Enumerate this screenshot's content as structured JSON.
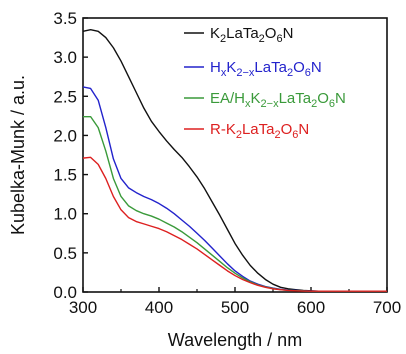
{
  "chart_data": {
    "type": "line",
    "xlabel": "Wavelength / nm",
    "ylabel": "Kubelka-Munk / a.u.",
    "xlim": [
      300,
      700
    ],
    "ylim": [
      0,
      3.5
    ],
    "xticks": [
      300,
      400,
      500,
      600,
      700
    ],
    "yticks": [
      0.0,
      0.5,
      1.0,
      1.5,
      2.0,
      2.5,
      3.0,
      3.5
    ],
    "ytick_labels": [
      "0.0",
      "0.5",
      "1.0",
      "1.5",
      "2.0",
      "2.5",
      "3.0",
      "3.5"
    ],
    "grid": false,
    "legend_position": "top-right",
    "series": [
      {
        "name": "K2LaTa2O6N",
        "legend": {
          "a": "K",
          "a_sub": "2",
          "b": "LaTa",
          "b_sub": "2",
          "c": "O",
          "c_sub": "6",
          "d": "N"
        },
        "color": "#111111",
        "x": [
          300,
          310,
          320,
          330,
          340,
          350,
          360,
          370,
          380,
          390,
          400,
          410,
          420,
          430,
          440,
          450,
          460,
          470,
          480,
          490,
          500,
          510,
          520,
          530,
          540,
          550,
          560,
          570,
          580,
          590,
          600,
          610,
          620,
          640,
          660,
          680,
          700
        ],
        "y": [
          3.33,
          3.35,
          3.33,
          3.25,
          3.12,
          2.95,
          2.75,
          2.55,
          2.35,
          2.18,
          2.05,
          1.93,
          1.82,
          1.72,
          1.6,
          1.47,
          1.32,
          1.15,
          0.98,
          0.8,
          0.62,
          0.47,
          0.34,
          0.24,
          0.16,
          0.1,
          0.06,
          0.04,
          0.03,
          0.02,
          0.015,
          0.01,
          0.01,
          0.01,
          0.01,
          0.01,
          0.01
        ]
      },
      {
        "name": "HxK2-xLaTa2O6N",
        "legend": {
          "a": "H",
          "a_sub": "x",
          "b": "K",
          "b_sub": "2−x",
          "c": "LaTa",
          "c_sub": "2",
          "d": "O",
          "d_sub": "6",
          "e": "N"
        },
        "color": "#2323cc",
        "x": [
          300,
          310,
          320,
          330,
          340,
          350,
          360,
          370,
          380,
          390,
          400,
          410,
          420,
          430,
          440,
          450,
          460,
          470,
          480,
          490,
          500,
          510,
          520,
          530,
          540,
          550,
          560,
          570,
          580,
          590,
          600,
          610,
          620,
          640,
          660,
          680,
          700
        ],
        "y": [
          2.62,
          2.6,
          2.45,
          2.1,
          1.7,
          1.45,
          1.33,
          1.27,
          1.22,
          1.18,
          1.13,
          1.07,
          1.0,
          0.92,
          0.84,
          0.75,
          0.66,
          0.56,
          0.46,
          0.36,
          0.27,
          0.2,
          0.14,
          0.1,
          0.07,
          0.05,
          0.035,
          0.025,
          0.02,
          0.015,
          0.012,
          0.01,
          0.01,
          0.01,
          0.01,
          0.01,
          0.01
        ]
      },
      {
        "name": "EA/HxK2-xLaTa2O6N",
        "legend": {
          "a": "EA/H",
          "a_sub": "x",
          "b": "K",
          "b_sub": "2−x",
          "c": "LaTa",
          "c_sub": "2",
          "d": "O",
          "d_sub": "6",
          "e": "N"
        },
        "color": "#3a9a3a",
        "x": [
          300,
          310,
          320,
          330,
          340,
          350,
          360,
          370,
          380,
          390,
          400,
          410,
          420,
          430,
          440,
          450,
          460,
          470,
          480,
          490,
          500,
          510,
          520,
          530,
          540,
          550,
          560,
          570,
          580,
          590,
          600,
          610,
          620,
          640,
          660,
          680,
          700
        ],
        "y": [
          2.24,
          2.24,
          2.1,
          1.8,
          1.45,
          1.22,
          1.1,
          1.04,
          1.0,
          0.97,
          0.93,
          0.88,
          0.83,
          0.77,
          0.7,
          0.63,
          0.55,
          0.47,
          0.39,
          0.31,
          0.24,
          0.18,
          0.13,
          0.09,
          0.065,
          0.045,
          0.03,
          0.022,
          0.017,
          0.013,
          0.01,
          0.01,
          0.01,
          0.01,
          0.01,
          0.01,
          0.01
        ]
      },
      {
        "name": "R-K2LaTa2O6N",
        "legend": {
          "a": "R-K",
          "a_sub": "2",
          "b": "LaTa",
          "b_sub": "2",
          "c": "O",
          "c_sub": "6",
          "d": "N"
        },
        "color": "#dd2020",
        "x": [
          300,
          310,
          320,
          330,
          340,
          350,
          360,
          370,
          380,
          390,
          400,
          410,
          420,
          430,
          440,
          450,
          460,
          470,
          480,
          490,
          500,
          510,
          520,
          530,
          540,
          550,
          560,
          570,
          580,
          590,
          600,
          610,
          620,
          640,
          660,
          680,
          700
        ],
        "y": [
          1.71,
          1.72,
          1.63,
          1.45,
          1.22,
          1.05,
          0.95,
          0.9,
          0.87,
          0.84,
          0.81,
          0.77,
          0.72,
          0.67,
          0.61,
          0.55,
          0.48,
          0.41,
          0.34,
          0.27,
          0.21,
          0.16,
          0.12,
          0.085,
          0.06,
          0.04,
          0.03,
          0.02,
          0.015,
          0.012,
          0.01,
          0.01,
          0.01,
          0.01,
          0.01,
          0.01,
          0.01
        ]
      }
    ]
  }
}
